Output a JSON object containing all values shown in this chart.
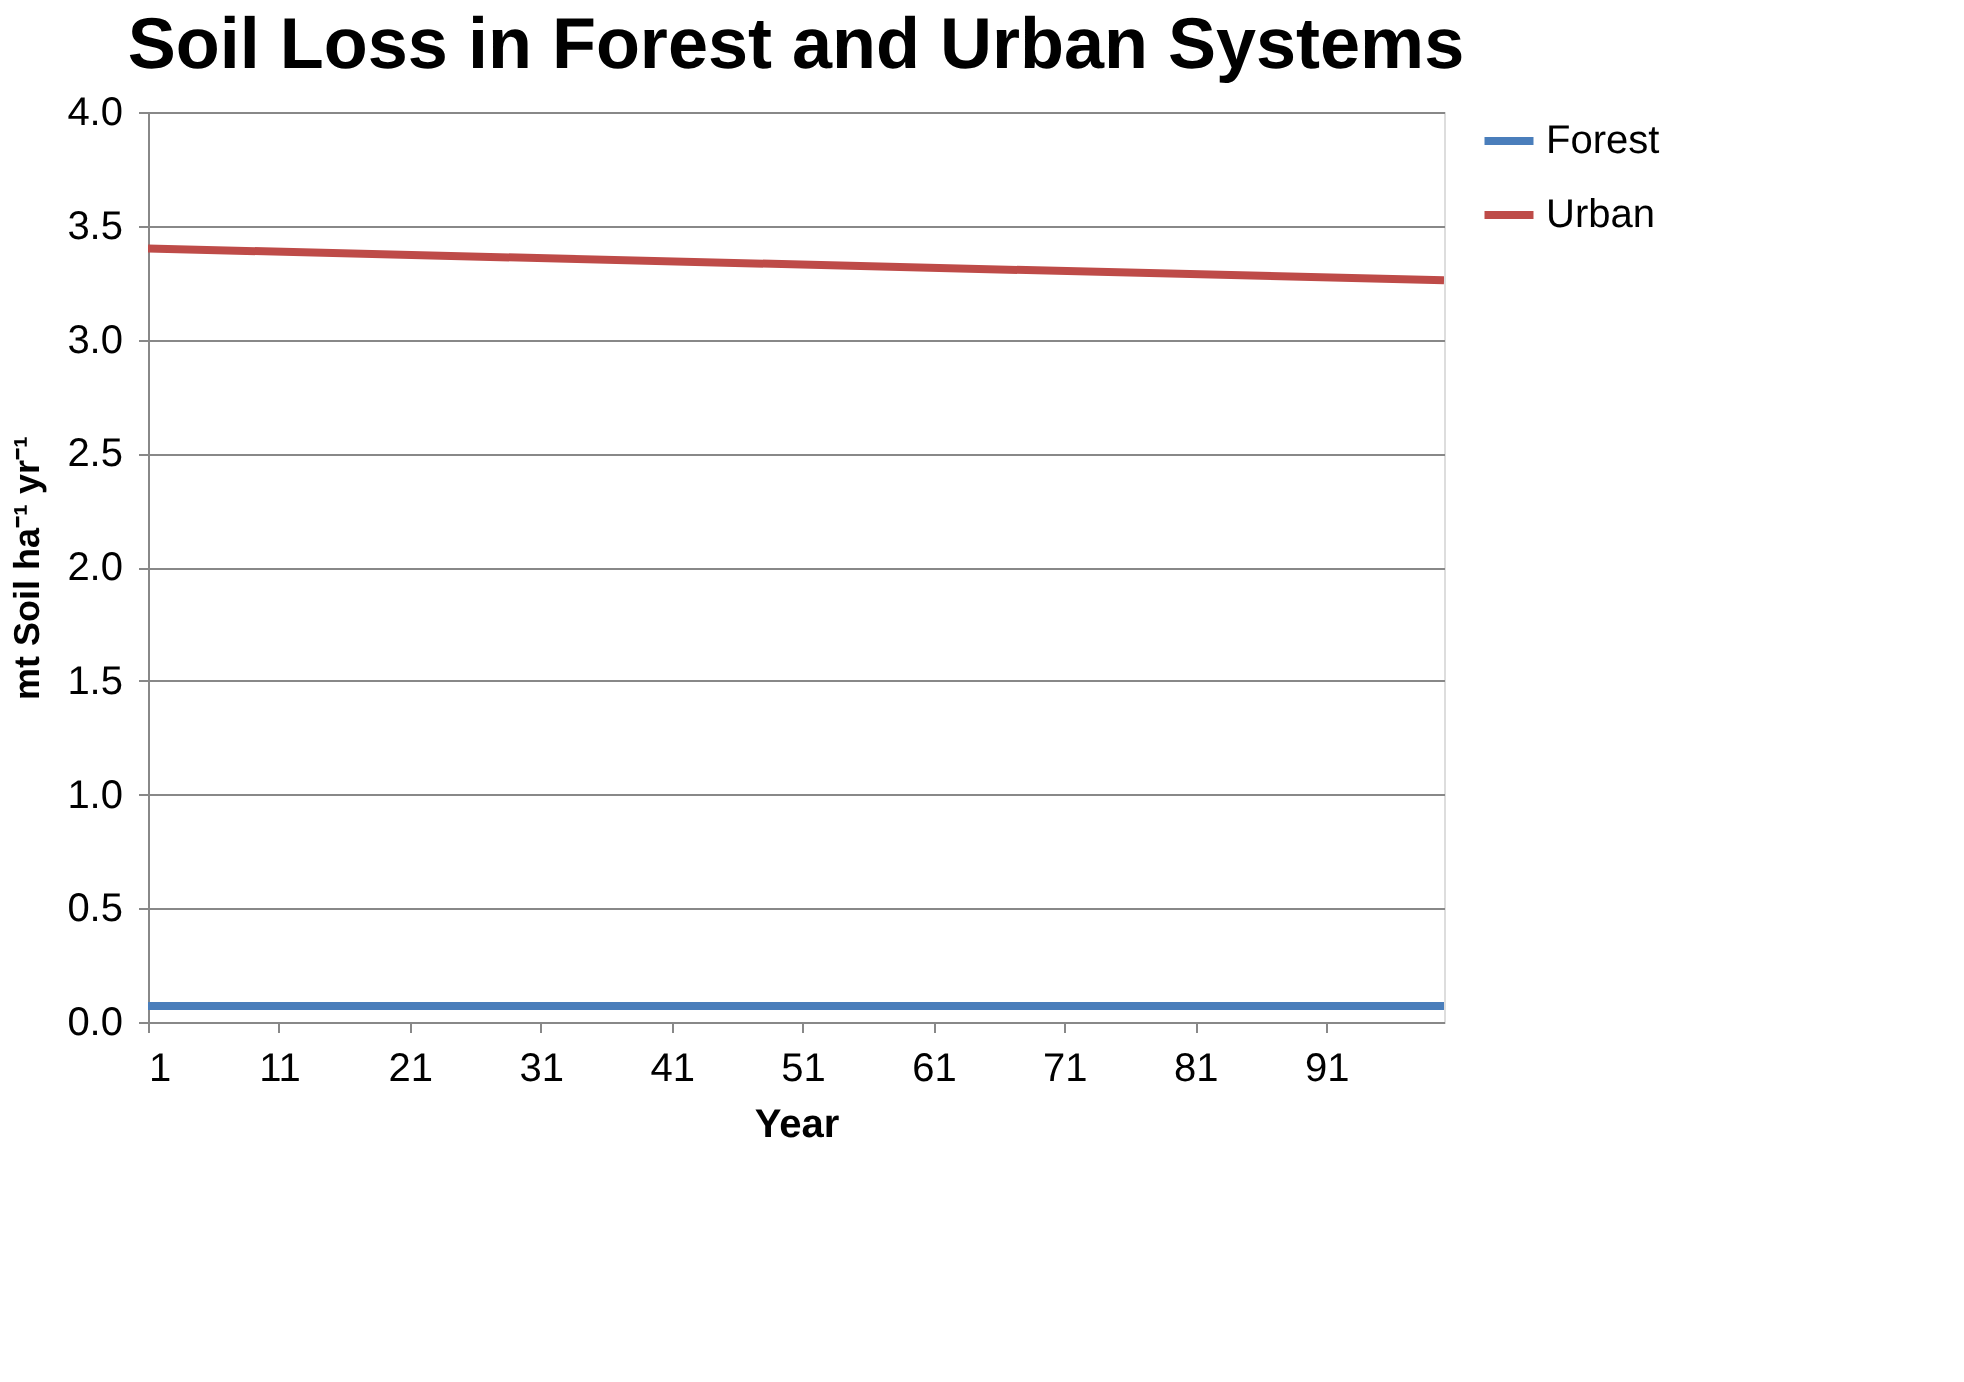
{
  "chart_data": {
    "type": "line",
    "title": "Soil Loss in Forest and Urban Systems",
    "xlabel": "Year",
    "ylabel": "mt Soil ha⁻¹ yr⁻¹",
    "x": [
      1,
      100
    ],
    "series": [
      {
        "name": "Forest",
        "color": "#4a7ebb",
        "values": [
          0.07,
          0.07
        ]
      },
      {
        "name": "Urban",
        "color": "#be4b48",
        "values": [
          3.4,
          3.26
        ]
      }
    ],
    "xlim": [
      1,
      100
    ],
    "xticks": [
      1,
      11,
      21,
      31,
      41,
      51,
      61,
      71,
      81,
      91
    ],
    "ylim": [
      0,
      4
    ],
    "yticks": [
      {
        "value": 0,
        "label": "0.0"
      },
      {
        "value": 0.5,
        "label": "0.5"
      },
      {
        "value": 1,
        "label": "1.0"
      },
      {
        "value": 1.5,
        "label": "1.5"
      },
      {
        "value": 2,
        "label": "2.0"
      },
      {
        "value": 2.5,
        "label": "2.5"
      },
      {
        "value": 3,
        "label": "3.0"
      },
      {
        "value": 3.5,
        "label": "3.5"
      },
      {
        "value": 4,
        "label": "4.0"
      }
    ],
    "grid": "y",
    "legend": "right",
    "marker": "none",
    "line_style": "solid"
  }
}
